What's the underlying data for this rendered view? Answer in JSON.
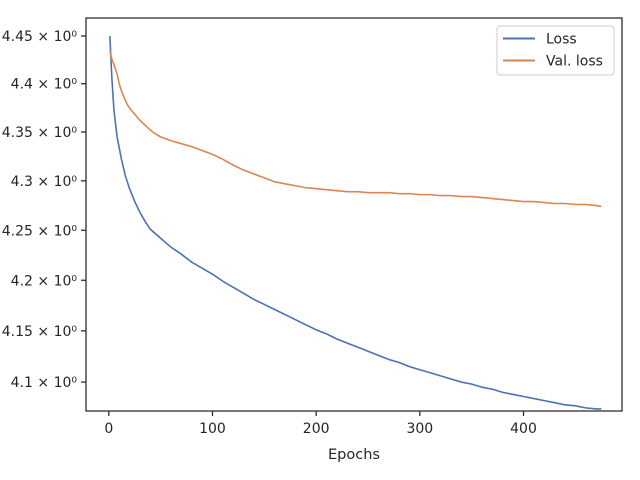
{
  "chart_data": {
    "type": "line",
    "title": "",
    "xlabel": "Epochs",
    "ylabel": "",
    "xlim": [
      -22,
      495
    ],
    "ylim": [
      4.072,
      4.469
    ],
    "y_scale": "log",
    "grid": false,
    "legend_position": "top-right",
    "x_ticks": [
      0,
      100,
      200,
      300,
      400
    ],
    "x_tick_labels": [
      "0",
      "100",
      "200",
      "300",
      "400"
    ],
    "y_ticks": [
      4.1,
      4.15,
      4.2,
      4.25,
      4.3,
      4.35,
      4.4,
      4.45
    ],
    "y_tick_labels": [
      "4.1 × 10⁰",
      "4.15 × 10⁰",
      "4.2 × 10⁰",
      "4.25 × 10⁰",
      "4.3 × 10⁰",
      "4.35 × 10⁰",
      "4.4 × 10⁰",
      "4.45 × 10⁰"
    ],
    "series": [
      {
        "name": "Loss",
        "color": "#4c72b0",
        "points": [
          [
            1,
            4.45
          ],
          [
            3,
            4.405
          ],
          [
            5,
            4.372
          ],
          [
            8,
            4.345
          ],
          [
            12,
            4.323
          ],
          [
            16,
            4.305
          ],
          [
            20,
            4.292
          ],
          [
            25,
            4.279
          ],
          [
            30,
            4.268
          ],
          [
            35,
            4.259
          ],
          [
            40,
            4.251
          ],
          [
            50,
            4.242
          ],
          [
            60,
            4.233
          ],
          [
            70,
            4.226
          ],
          [
            80,
            4.218
          ],
          [
            90,
            4.212
          ],
          [
            100,
            4.206
          ],
          [
            110,
            4.199
          ],
          [
            120,
            4.193
          ],
          [
            130,
            4.187
          ],
          [
            140,
            4.181
          ],
          [
            150,
            4.176
          ],
          [
            160,
            4.171
          ],
          [
            170,
            4.166
          ],
          [
            180,
            4.161
          ],
          [
            190,
            4.156
          ],
          [
            200,
            4.151
          ],
          [
            210,
            4.147
          ],
          [
            220,
            4.142
          ],
          [
            230,
            4.138
          ],
          [
            240,
            4.134
          ],
          [
            250,
            4.13
          ],
          [
            260,
            4.126
          ],
          [
            270,
            4.122
          ],
          [
            280,
            4.119
          ],
          [
            290,
            4.115
          ],
          [
            300,
            4.112
          ],
          [
            310,
            4.109
          ],
          [
            320,
            4.106
          ],
          [
            330,
            4.103
          ],
          [
            340,
            4.1
          ],
          [
            350,
            4.098
          ],
          [
            360,
            4.095
          ],
          [
            370,
            4.093
          ],
          [
            380,
            4.09
          ],
          [
            390,
            4.088
          ],
          [
            400,
            4.086
          ],
          [
            410,
            4.084
          ],
          [
            420,
            4.082
          ],
          [
            430,
            4.08
          ],
          [
            440,
            4.078
          ],
          [
            450,
            4.077
          ],
          [
            460,
            4.075
          ],
          [
            470,
            4.074
          ],
          [
            475,
            4.074
          ]
        ]
      },
      {
        "name": "Val. loss",
        "color": "#dd8452",
        "points": [
          [
            1,
            4.435
          ],
          [
            3,
            4.425
          ],
          [
            5,
            4.42
          ],
          [
            8,
            4.41
          ],
          [
            10,
            4.4
          ],
          [
            12,
            4.393
          ],
          [
            15,
            4.385
          ],
          [
            18,
            4.378
          ],
          [
            22,
            4.372
          ],
          [
            26,
            4.367
          ],
          [
            30,
            4.362
          ],
          [
            35,
            4.357
          ],
          [
            40,
            4.352
          ],
          [
            45,
            4.348
          ],
          [
            50,
            4.345
          ],
          [
            60,
            4.341
          ],
          [
            70,
            4.338
          ],
          [
            80,
            4.335
          ],
          [
            90,
            4.331
          ],
          [
            100,
            4.327
          ],
          [
            110,
            4.322
          ],
          [
            120,
            4.316
          ],
          [
            130,
            4.311
          ],
          [
            140,
            4.307
          ],
          [
            150,
            4.303
          ],
          [
            160,
            4.299
          ],
          [
            170,
            4.297
          ],
          [
            180,
            4.295
          ],
          [
            190,
            4.293
          ],
          [
            200,
            4.292
          ],
          [
            210,
            4.291
          ],
          [
            220,
            4.29
          ],
          [
            230,
            4.289
          ],
          [
            240,
            4.289
          ],
          [
            250,
            4.288
          ],
          [
            260,
            4.288
          ],
          [
            270,
            4.288
          ],
          [
            280,
            4.287
          ],
          [
            290,
            4.287
          ],
          [
            300,
            4.286
          ],
          [
            310,
            4.286
          ],
          [
            320,
            4.285
          ],
          [
            330,
            4.285
          ],
          [
            340,
            4.284
          ],
          [
            350,
            4.284
          ],
          [
            360,
            4.283
          ],
          [
            370,
            4.282
          ],
          [
            380,
            4.281
          ],
          [
            390,
            4.28
          ],
          [
            400,
            4.279
          ],
          [
            410,
            4.279
          ],
          [
            420,
            4.278
          ],
          [
            430,
            4.277
          ],
          [
            440,
            4.277
          ],
          [
            450,
            4.276
          ],
          [
            460,
            4.276
          ],
          [
            470,
            4.275
          ],
          [
            475,
            4.274
          ]
        ]
      }
    ]
  }
}
